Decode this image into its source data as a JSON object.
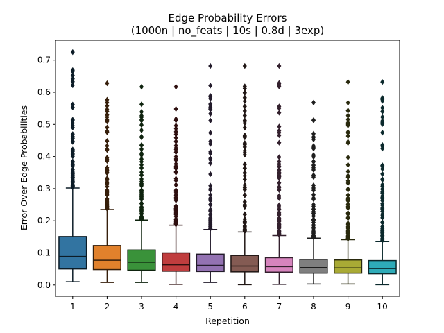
{
  "chart_data": {
    "type": "box",
    "title": "Edge Probability Errors",
    "subtitle": "(1000n | no_feats | 10s | 0.8d | 3exp)",
    "xlabel": "Repetition",
    "ylabel": "Error Over Edge Probabilities",
    "categories": [
      "1",
      "2",
      "3",
      "4",
      "5",
      "6",
      "7",
      "8",
      "9",
      "10"
    ],
    "ylim": [
      -0.035,
      0.762
    ],
    "yticks": [
      0.0,
      0.1,
      0.2,
      0.3,
      0.4,
      0.5,
      0.6,
      0.7
    ],
    "ytick_labels": [
      "0.0",
      "0.1",
      "0.2",
      "0.3",
      "0.4",
      "0.5",
      "0.6",
      "0.7"
    ],
    "grid": false,
    "colors": [
      "#3274a1",
      "#e1812c",
      "#3a923a",
      "#c03d3e",
      "#9372b2",
      "#845b53",
      "#d684bd",
      "#7f7f7f",
      "#a9aa35",
      "#2eabb8"
    ],
    "boxes": [
      {
        "min": 0.01,
        "q1": 0.05,
        "median": 0.089,
        "q3": 0.151,
        "max": 0.302,
        "outlier_max": 0.725
      },
      {
        "min": 0.008,
        "q1": 0.048,
        "median": 0.077,
        "q3": 0.123,
        "max": 0.235,
        "outlier_max": 0.628
      },
      {
        "min": 0.008,
        "q1": 0.046,
        "median": 0.071,
        "q3": 0.109,
        "max": 0.202,
        "outlier_max": 0.617
      },
      {
        "min": 0.002,
        "q1": 0.043,
        "median": 0.063,
        "q3": 0.1,
        "max": 0.186,
        "outlier_max": 0.617
      },
      {
        "min": 0.008,
        "q1": 0.042,
        "median": 0.061,
        "q3": 0.096,
        "max": 0.173,
        "outlier_max": 0.682
      },
      {
        "min": 0.001,
        "q1": 0.041,
        "median": 0.059,
        "q3": 0.092,
        "max": 0.165,
        "outlier_max": 0.682
      },
      {
        "min": 0.002,
        "q1": 0.04,
        "median": 0.057,
        "q3": 0.085,
        "max": 0.154,
        "outlier_max": 0.682
      },
      {
        "min": 0.003,
        "q1": 0.037,
        "median": 0.054,
        "q3": 0.08,
        "max": 0.146,
        "outlier_max": 0.568
      },
      {
        "min": 0.003,
        "q1": 0.037,
        "median": 0.053,
        "q3": 0.078,
        "max": 0.141,
        "outlier_max": 0.632
      },
      {
        "min": 0.001,
        "q1": 0.035,
        "median": 0.051,
        "q3": 0.076,
        "max": 0.135,
        "outlier_max": 0.632
      }
    ]
  }
}
